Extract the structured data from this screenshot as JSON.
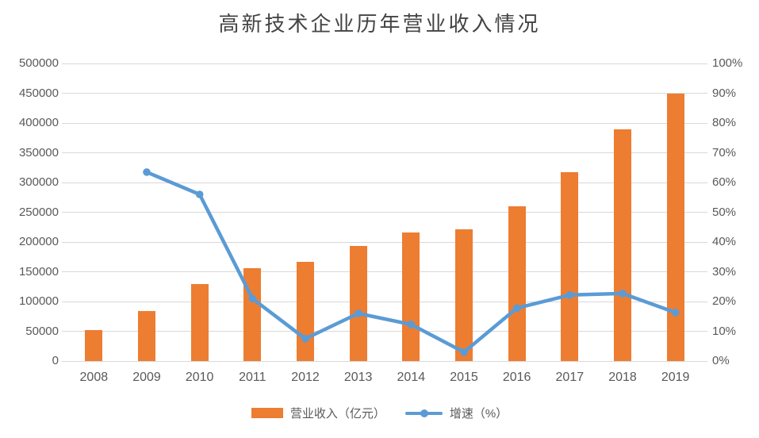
{
  "title": "高新技术企业历年营业收入情况",
  "legend": {
    "bar_label": "营业收入（亿元）",
    "line_label": "增速（%）"
  },
  "colors": {
    "bar": "#ed7d31",
    "line": "#5b9bd5",
    "grid": "#d9d9d9",
    "axis_text": "#595959",
    "title_text": "#444444"
  },
  "chart_data": {
    "type": "bar",
    "subtype": "bar-line-combo",
    "title": "高新技术企业历年营业收入情况",
    "categories": [
      "2008",
      "2009",
      "2010",
      "2011",
      "2012",
      "2013",
      "2014",
      "2015",
      "2016",
      "2017",
      "2018",
      "2019"
    ],
    "series": [
      {
        "name": "营业收入（亿元）",
        "type": "bar",
        "axis": "left",
        "color": "#ed7d31",
        "values": [
          52000,
          84000,
          130000,
          156000,
          167000,
          194000,
          216000,
          222000,
          260000,
          318000,
          390000,
          450000
        ]
      },
      {
        "name": "增速（%）",
        "type": "line",
        "axis": "right",
        "color": "#5b9bd5",
        "values": [
          null,
          63.5,
          56,
          21,
          7.5,
          16,
          12.3,
          3,
          17.8,
          22.2,
          22.7,
          16.3
        ]
      }
    ],
    "left_axis": {
      "min": 0,
      "max": 500000,
      "step": 50000,
      "tick_labels": [
        "0",
        "50000",
        "100000",
        "150000",
        "200000",
        "250000",
        "300000",
        "350000",
        "400000",
        "450000",
        "500000"
      ]
    },
    "right_axis": {
      "min": 0,
      "max": 100,
      "step": 10,
      "tick_labels": [
        "0%",
        "10%",
        "20%",
        "30%",
        "40%",
        "50%",
        "60%",
        "70%",
        "80%",
        "90%",
        "100%"
      ]
    },
    "grid": true,
    "legend_position": "bottom"
  }
}
